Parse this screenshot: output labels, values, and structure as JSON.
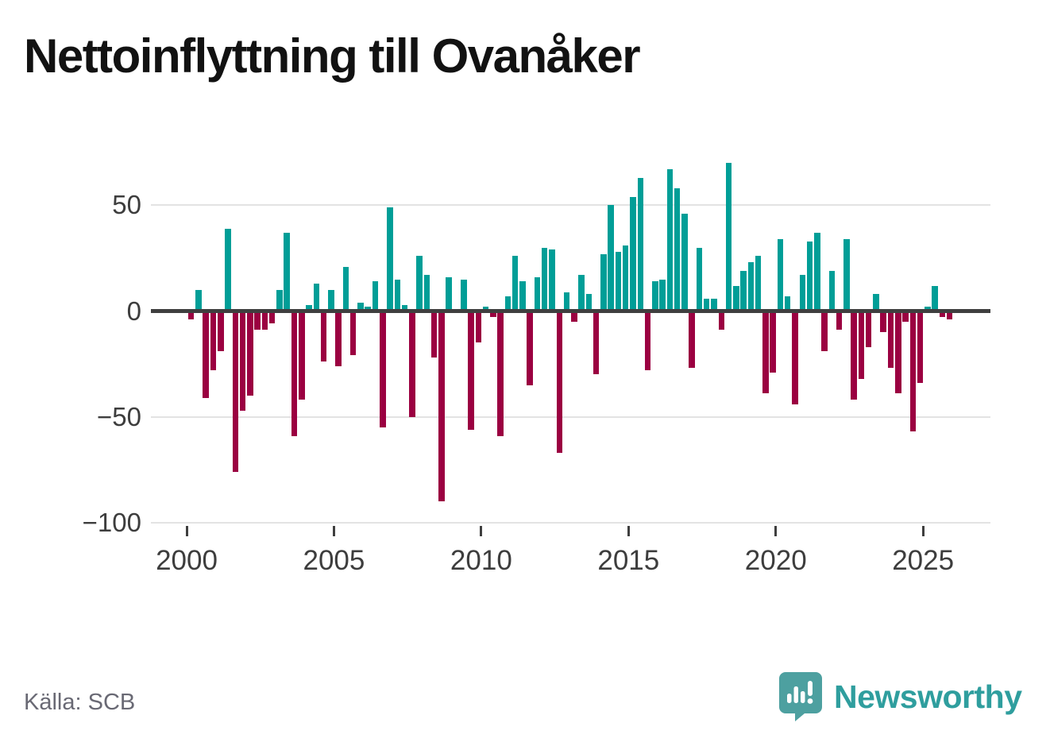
{
  "title": "Nettoinflyttning till Ovanåker",
  "source_note": "Källa: SCB",
  "branding": {
    "name": "Newsworthy",
    "icon": "newsworthy-bubble-chart-icon"
  },
  "colors": {
    "positive_bar": "#009e97",
    "negative_bar": "#9b0041",
    "zero_axis": "#3f3f3f",
    "gridline": "#e3e3e3",
    "axis_text": "#3d3d3d",
    "title_text": "#121212",
    "source_text": "#696974",
    "brand_teal": "#2f9e9e"
  },
  "chart_data": {
    "type": "bar",
    "title": "Nettoinflyttning till Ovanåker",
    "x_unit": "quarter",
    "start_period": "2000Q1",
    "end_period": "2025Q4",
    "values": [
      -4,
      10,
      -41,
      -28,
      -19,
      39,
      -76,
      -47,
      -40,
      -9,
      -9,
      -6,
      10,
      37,
      -59,
      -42,
      3,
      13,
      -24,
      10,
      -26,
      21,
      -21,
      4,
      2,
      14,
      -55,
      49,
      15,
      3,
      -50,
      26,
      17,
      -22,
      -90,
      16,
      0,
      15,
      -56,
      -15,
      2,
      -3,
      -59,
      7,
      26,
      14,
      -35,
      16,
      30,
      29,
      -67,
      9,
      -5,
      17,
      8,
      -30,
      27,
      50,
      28,
      31,
      54,
      63,
      -28,
      14,
      15,
      67,
      58,
      46,
      -27,
      30,
      6,
      6,
      -9,
      70,
      12,
      19,
      23,
      26,
      -39,
      -29,
      34,
      7,
      -44,
      17,
      33,
      37,
      -19,
      19,
      -9,
      34,
      -42,
      -32,
      -17,
      8,
      -10,
      -27,
      -39,
      -5,
      -57,
      -34,
      2,
      12,
      -3,
      -4
    ],
    "ylim": [
      -100,
      75
    ],
    "grid": true,
    "legend": "none",
    "yticks": [
      {
        "label": "50",
        "value": 50
      },
      {
        "label": "0",
        "value": 0
      },
      {
        "label": "−50",
        "value": -50
      },
      {
        "label": "−100",
        "value": -100
      }
    ],
    "xticks": [
      {
        "label": "2000",
        "year": 2000
      },
      {
        "label": "2005",
        "year": 2005
      },
      {
        "label": "2010",
        "year": 2010
      },
      {
        "label": "2015",
        "year": 2015
      },
      {
        "label": "2020",
        "year": 2020
      },
      {
        "label": "2025",
        "year": 2025
      }
    ]
  }
}
